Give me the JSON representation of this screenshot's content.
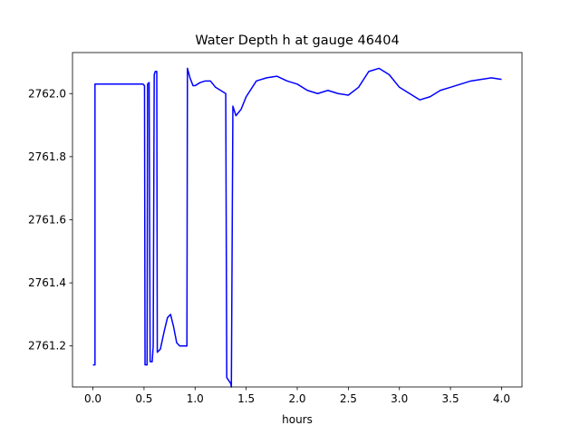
{
  "chart_data": {
    "type": "line",
    "title": "Water Depth h at gauge 46404",
    "xlabel": "hours",
    "ylabel": "",
    "xlim": [
      -0.2,
      4.2
    ],
    "ylim": [
      2761.07,
      2762.13
    ],
    "xticks": [
      0.0,
      0.5,
      1.0,
      1.5,
      2.0,
      2.5,
      3.0,
      3.5,
      4.0
    ],
    "xtick_labels": [
      "0.0",
      "0.5",
      "1.0",
      "1.5",
      "2.0",
      "2.5",
      "3.0",
      "3.5",
      "4.0"
    ],
    "yticks": [
      2761.2,
      2761.4,
      2761.6,
      2761.8,
      2762.0
    ],
    "ytick_labels": [
      "2761.2",
      "2761.4",
      "2761.6",
      "2761.8",
      "2762.0"
    ],
    "grid": false,
    "series": [
      {
        "color": "#0000ff",
        "x": [
          0.0,
          0.02,
          0.02,
          0.49,
          0.505,
          0.51,
          0.53,
          0.535,
          0.55,
          0.56,
          0.58,
          0.59,
          0.6,
          0.61,
          0.625,
          0.63,
          0.66,
          0.7,
          0.73,
          0.76,
          0.79,
          0.82,
          0.85,
          0.9,
          0.92,
          0.925,
          0.95,
          0.98,
          1.0,
          1.05,
          1.1,
          1.15,
          1.2,
          1.25,
          1.3,
          1.31,
          1.35,
          1.355,
          1.37,
          1.4,
          1.45,
          1.5,
          1.6,
          1.7,
          1.8,
          1.9,
          2.0,
          2.1,
          2.2,
          2.3,
          2.4,
          2.5,
          2.6,
          2.7,
          2.8,
          2.9,
          3.0,
          3.1,
          3.2,
          3.3,
          3.4,
          3.5,
          3.6,
          3.7,
          3.8,
          3.9,
          4.0
        ],
        "y": [
          2761.14,
          2761.14,
          2762.03,
          2762.03,
          2762.025,
          2761.14,
          2761.14,
          2762.03,
          2762.035,
          2761.15,
          2761.15,
          2761.2,
          2762.06,
          2762.07,
          2762.07,
          2761.18,
          2761.19,
          2761.25,
          2761.29,
          2761.3,
          2761.26,
          2761.21,
          2761.2,
          2761.2,
          2761.2,
          2762.08,
          2762.05,
          2762.025,
          2762.025,
          2762.035,
          2762.04,
          2762.04,
          2762.02,
          2762.01,
          2762.0,
          2761.1,
          2761.08,
          2761.07,
          2761.96,
          2761.93,
          2761.95,
          2761.99,
          2762.04,
          2762.05,
          2762.055,
          2762.04,
          2762.03,
          2762.01,
          2762.0,
          2762.01,
          2762.0,
          2761.995,
          2762.02,
          2762.07,
          2762.08,
          2762.06,
          2762.02,
          2762.0,
          2761.98,
          2761.99,
          2762.01,
          2762.02,
          2762.03,
          2762.04,
          2762.045,
          2762.05,
          2762.045
        ]
      }
    ]
  }
}
